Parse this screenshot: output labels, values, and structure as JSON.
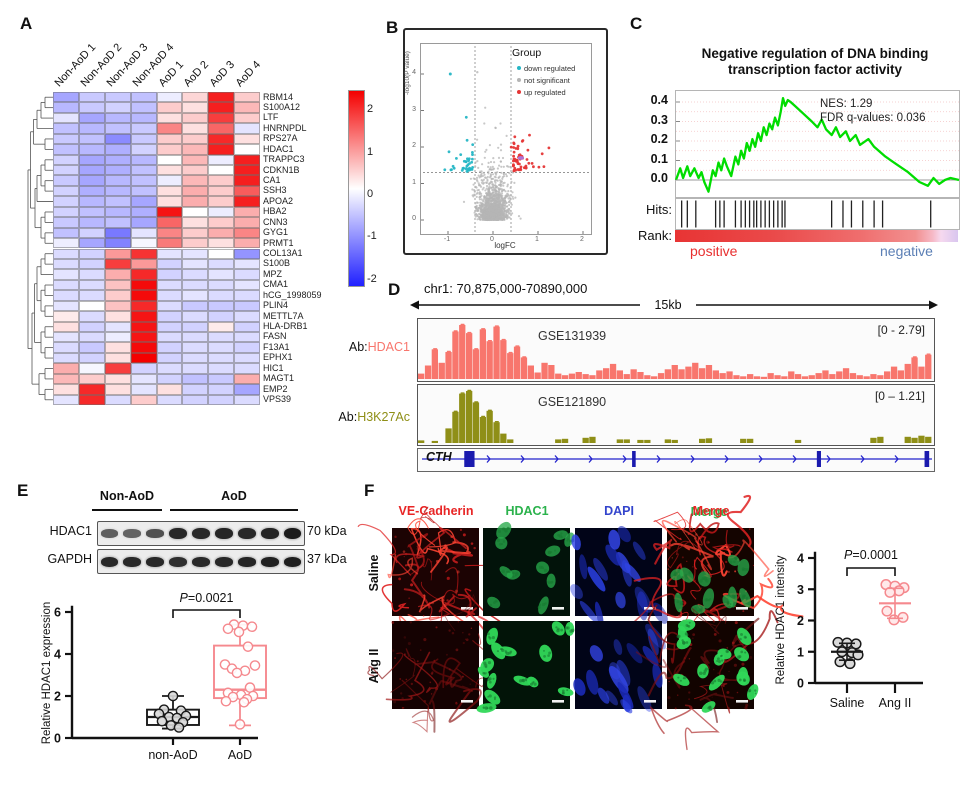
{
  "panelA": {
    "label": "A",
    "colorbar_ticks": [
      "2",
      "1",
      "0",
      "-1",
      "-2"
    ]
  },
  "panelB": {
    "label": "B",
    "legend_title": "Group",
    "legend": [
      {
        "label": "down regulated",
        "color": "#25b6c5"
      },
      {
        "label": "not significant",
        "color": "#b5b5b5"
      },
      {
        "label": "up regulated",
        "color": "#e53535"
      }
    ],
    "xlabel": "logFC",
    "ylabel": "-log10(P value)"
  },
  "panelC": {
    "label": "C",
    "title1": "Negative regulation of DNA binding",
    "title2": "transcription factor activity",
    "nes": "NES: 1.29",
    "fdr": "FDR q-values: 0.036",
    "hits": "Hits:",
    "rank": "Rank:",
    "positive": "positive",
    "negative": "negative"
  },
  "panelD": {
    "label": "D",
    "region": "chr1: 70,875,000-70890,000",
    "span": "15kb",
    "ab_prefix": "Ab:",
    "track1_ab": "HDAC1",
    "track1_gse": "GSE131939",
    "track1_range": "[0 - 2.79]",
    "track2_ab": "H3K27Ac",
    "track2_gse": "GSE121890",
    "track2_range": "[0 – 1.21]",
    "gene": "CTH"
  },
  "panelE": {
    "label": "E",
    "group1": "Non-AoD",
    "group2": "AoD",
    "protein1": "HDAC1",
    "kda1": "70 kDa",
    "protein2": "GAPDH",
    "kda2": "37 kDa",
    "p_italic": "P",
    "p_text": "=0.0021",
    "ylabel": "Relative HDAC1 expression",
    "x1": "non-AoD",
    "x2": "AoD"
  },
  "panelF": {
    "label": "F",
    "headers": [
      {
        "label": "VE-Cadherin",
        "color": "#e82525"
      },
      {
        "label": "HDAC1",
        "color": "#2bb24c"
      },
      {
        "label": "DAPI",
        "color": "#3344cc"
      },
      {
        "label": "Merge",
        "color": "#e82525",
        "shadow": "#2bb24c"
      }
    ],
    "rows": [
      "Saline",
      "Ang II"
    ],
    "p_italic": "P",
    "p_text": "=0.0001",
    "ylabel": "Relative HDAC1 intensity",
    "x1": "Saline",
    "x2": "Ang II"
  },
  "chart_data": [
    {
      "id": "A",
      "type": "heatmap",
      "categories": [
        "Non-AoD 1",
        "Non-AoD 2",
        "Non-AoD 3",
        "Non-AoD 4",
        "AoD 1",
        "AoD 2",
        "AoD 3",
        "AoD 4"
      ],
      "rows": [
        "RBM14",
        "S100A12",
        "LTF",
        "HNRNPDL",
        "RPS27A",
        "HDAC1",
        "TRAPPC3",
        "CDKN1B",
        "CA1",
        "SSH3",
        "APOA2",
        "HBA2",
        "CNN3",
        "GYG1",
        "PRMT1",
        "COL13A1",
        "S100B",
        "MPZ",
        "CMA1",
        "hCG_1998059",
        "PLIN4",
        "METTL7A",
        "HLA-DRB1",
        "FASN",
        "F13A1",
        "EPHX1",
        "HIC1",
        "MAGT1",
        "EMP2",
        "VPS39"
      ],
      "values": [
        [
          -1.0,
          -0.6,
          -0.6,
          -0.7,
          -0.2,
          0.4,
          2.2,
          0.5
        ],
        [
          -0.8,
          -0.6,
          -0.5,
          -0.7,
          0.5,
          0.3,
          2.2,
          0.7
        ],
        [
          -0.3,
          -1.0,
          -0.8,
          -0.8,
          0.3,
          0.5,
          1.9,
          0.5
        ],
        [
          -0.7,
          -0.8,
          -0.7,
          -0.6,
          1.2,
          0.3,
          1.5,
          -0.3
        ],
        [
          -0.6,
          -0.7,
          -1.3,
          -0.6,
          0.5,
          0.5,
          2.1,
          0.3
        ],
        [
          -0.7,
          -0.8,
          -0.9,
          -0.5,
          0.5,
          0.7,
          2.2,
          0.0
        ],
        [
          -0.5,
          -1.0,
          -0.9,
          -0.8,
          0.0,
          0.7,
          -0.2,
          2.2
        ],
        [
          -0.5,
          -1.0,
          -0.9,
          -0.7,
          0.3,
          0.5,
          0.0,
          2.2
        ],
        [
          -0.6,
          -1.0,
          -0.8,
          -0.7,
          -0.2,
          0.7,
          0.5,
          2.2
        ],
        [
          -0.5,
          -0.9,
          -0.8,
          -0.7,
          0.3,
          0.8,
          0.5,
          1.6
        ],
        [
          -0.5,
          -0.8,
          -0.7,
          -1.0,
          0.3,
          0.8,
          0.5,
          2.2
        ],
        [
          -0.5,
          -0.7,
          -0.8,
          -0.9,
          2.3,
          0.0,
          -0.2,
          0.8
        ],
        [
          -0.6,
          -0.8,
          -0.7,
          -1.0,
          1.5,
          0.3,
          0.5,
          0.8
        ],
        [
          -0.7,
          -0.5,
          -1.5,
          -0.3,
          1.2,
          0.5,
          0.8,
          1.2
        ],
        [
          -0.2,
          -1.0,
          -1.4,
          -0.1,
          1.3,
          0.5,
          0.3,
          0.8
        ],
        [
          -0.4,
          -0.5,
          1.0,
          2.0,
          -0.3,
          -0.3,
          0.0,
          -1.2
        ],
        [
          -0.4,
          -0.5,
          1.9,
          1.0,
          -0.5,
          -0.3,
          -0.4,
          -0.3
        ],
        [
          -0.3,
          -0.4,
          0.8,
          2.1,
          -0.5,
          -0.4,
          -0.3,
          -0.4
        ],
        [
          -0.4,
          -0.4,
          0.6,
          2.4,
          -0.4,
          -0.4,
          -0.4,
          -0.3
        ],
        [
          -0.4,
          -0.4,
          0.5,
          2.4,
          -0.4,
          -0.3,
          -0.4,
          -0.4
        ],
        [
          -0.3,
          0.0,
          0.6,
          2.1,
          -0.4,
          -0.6,
          -0.6,
          -0.6
        ],
        [
          0.2,
          -0.4,
          0.3,
          2.3,
          -0.5,
          -0.4,
          -0.5,
          -0.4
        ],
        [
          0.3,
          -0.5,
          -0.3,
          2.3,
          -0.5,
          -0.5,
          0.2,
          -0.5
        ],
        [
          -0.3,
          -0.4,
          -0.2,
          2.3,
          -0.4,
          -0.4,
          -0.4,
          -0.4
        ],
        [
          -0.4,
          -0.6,
          0.3,
          2.4,
          -0.5,
          -0.4,
          -0.4,
          -0.5
        ],
        [
          -0.4,
          -0.5,
          0.3,
          2.5,
          -0.5,
          -0.4,
          -0.4,
          -0.4
        ],
        [
          0.8,
          -0.1,
          1.9,
          -0.5,
          -0.4,
          -0.4,
          -0.4,
          -0.4
        ],
        [
          0.7,
          0.5,
          0.3,
          -0.3,
          -0.5,
          -0.7,
          -0.6,
          0.8
        ],
        [
          0.3,
          2.1,
          0.3,
          -0.3,
          0.3,
          -0.5,
          -0.5,
          -1.0
        ],
        [
          -0.3,
          2.1,
          -0.4,
          0.5,
          -0.4,
          -0.5,
          -0.5,
          -0.4
        ]
      ],
      "scale": {
        "ticks": [
          2,
          1,
          0,
          -1,
          -2
        ],
        "high": "#f40000",
        "mid": "#ffffff",
        "low": "#2020ff",
        "vmax": 2.5
      }
    },
    {
      "id": "B",
      "type": "scatter",
      "subtype": "volcano",
      "xlabel": "logFC",
      "ylabel": "-log10(P value)",
      "x_ticks": [
        -1,
        0,
        1,
        2
      ],
      "y_ticks": [
        0,
        1,
        2,
        3,
        4
      ],
      "xlim": [
        -1.65,
        2.35
      ],
      "ylim": [
        0,
        4.6
      ],
      "fc_threshold": 0.4,
      "p_threshold": 1.3,
      "highlight_point": {
        "x": 0.62,
        "y": 1.7,
        "color": "#a678e8"
      }
    },
    {
      "id": "C",
      "type": "line",
      "series": "enrichment score",
      "color": "#00dd00",
      "ylim": [
        -0.09,
        0.45
      ],
      "y_ticks": [
        0.4,
        0.3,
        0.2,
        0.1,
        0.0
      ],
      "nes": 1.29,
      "fdr_q": 0.036,
      "curve": [
        [
          0,
          0.0
        ],
        [
          1.5,
          0.06
        ],
        [
          2.5,
          0.01
        ],
        [
          4,
          0.07
        ],
        [
          5,
          0.02
        ],
        [
          6.5,
          0.06
        ],
        [
          8,
          0.01
        ],
        [
          9,
          0.04
        ],
        [
          10,
          -0.01
        ],
        [
          11.5,
          -0.06
        ],
        [
          13,
          0.05
        ],
        [
          14,
          0.02
        ],
        [
          15,
          0.09
        ],
        [
          16,
          0.05
        ],
        [
          17,
          0.11
        ],
        [
          18,
          0.07
        ],
        [
          19.5,
          0.02
        ],
        [
          21,
          0.12
        ],
        [
          22,
          0.08
        ],
        [
          23,
          0.15
        ],
        [
          24,
          0.11
        ],
        [
          25,
          0.19
        ],
        [
          26,
          0.15
        ],
        [
          27,
          0.21
        ],
        [
          28,
          0.17
        ],
        [
          29,
          0.24
        ],
        [
          30,
          0.2
        ],
        [
          31,
          0.27
        ],
        [
          32,
          0.23
        ],
        [
          33,
          0.29
        ],
        [
          34,
          0.26
        ],
        [
          35,
          0.32
        ],
        [
          36,
          0.28
        ],
        [
          37,
          0.35
        ],
        [
          37.8,
          0.42
        ],
        [
          38.6,
          0.38
        ],
        [
          39.5,
          0.41
        ],
        [
          40.5,
          0.4
        ],
        [
          42,
          0.38
        ],
        [
          45,
          0.34
        ],
        [
          48,
          0.3
        ],
        [
          50,
          0.27
        ],
        [
          51.5,
          0.31
        ],
        [
          53,
          0.26
        ],
        [
          55,
          0.23
        ],
        [
          56.5,
          0.27
        ],
        [
          58,
          0.22
        ],
        [
          60,
          0.25
        ],
        [
          61.5,
          0.2
        ],
        [
          63.5,
          0.23
        ],
        [
          65,
          0.18
        ],
        [
          68,
          0.21
        ],
        [
          70,
          0.17
        ],
        [
          74,
          0.12
        ],
        [
          78,
          0.08
        ],
        [
          82,
          0.04
        ],
        [
          86,
          -0.01
        ],
        [
          89,
          -0.03
        ],
        [
          91,
          0.01
        ],
        [
          93,
          -0.02
        ],
        [
          95,
          0.0
        ],
        [
          97,
          0.01
        ],
        [
          100,
          0.0
        ]
      ],
      "hit_positions_pct": [
        2,
        4,
        7,
        14,
        15.5,
        17,
        21,
        23,
        24.5,
        26,
        27.5,
        28.5,
        30,
        31.5,
        33,
        34.5,
        36,
        37.5,
        38.5,
        55,
        59,
        62,
        66,
        70,
        73,
        90
      ]
    },
    {
      "id": "D",
      "type": "area",
      "tracks": [
        {
          "name": "HDAC1",
          "color": "#f8766d",
          "profile": [
            0.1,
            0.25,
            0.55,
            0.3,
            0.5,
            0.88,
            1.0,
            0.85,
            0.55,
            0.92,
            0.7,
            0.97,
            0.72,
            0.48,
            0.6,
            0.4,
            0.25,
            0.12,
            0.3,
            0.26,
            0.1,
            0.07,
            0.1,
            0.13,
            0.09,
            0.07,
            0.16,
            0.2,
            0.28,
            0.16,
            0.09,
            0.18,
            0.13,
            0.07,
            0.05,
            0.11,
            0.18,
            0.26,
            0.18,
            0.23,
            0.3,
            0.2,
            0.26,
            0.16,
            0.11,
            0.14,
            0.07,
            0.05,
            0.09,
            0.05,
            0.04,
            0.11,
            0.07,
            0.05,
            0.14,
            0.09,
            0.05,
            0.07,
            0.11,
            0.16,
            0.09,
            0.14,
            0.2,
            0.11,
            0.07,
            0.05,
            0.09,
            0.07,
            0.14,
            0.23,
            0.16,
            0.28,
            0.4,
            0.23,
            0.45
          ]
        },
        {
          "name": "H3K27Ac",
          "color": "#8f8f17",
          "profile": [
            0.05,
            0,
            0.04,
            0,
            0.28,
            0.6,
            0.95,
            1.0,
            0.78,
            0.5,
            0.62,
            0.4,
            0.18,
            0.07,
            0,
            0,
            0,
            0,
            0,
            0,
            0.07,
            0.08,
            0,
            0,
            0.1,
            0.12,
            0,
            0,
            0,
            0.07,
            0.07,
            0,
            0.06,
            0.06,
            0,
            0,
            0.07,
            0.06,
            0,
            0,
            0,
            0.08,
            0.09,
            0,
            0,
            0,
            0,
            0.08,
            0.08,
            0,
            0,
            0,
            0,
            0,
            0,
            0.06,
            0,
            0,
            0,
            0,
            0,
            0,
            0,
            0,
            0,
            0,
            0.1,
            0.12,
            0,
            0,
            0,
            0.12,
            0.1,
            0.14,
            0.12
          ]
        }
      ],
      "gene_exons_pct": [
        [
          10,
          2.0
        ],
        [
          42,
          0.7
        ],
        [
          78,
          0.8
        ],
        [
          99,
          0.9
        ]
      ]
    },
    {
      "id": "E-blot",
      "type": "bar",
      "lanes": 9,
      "group_sizes": [
        3,
        6
      ],
      "rows": [
        {
          "name": "HDAC1",
          "intensities": [
            0.5,
            0.45,
            0.6,
            0.9,
            0.88,
            0.92,
            0.9,
            0.93,
            1.0
          ]
        },
        {
          "name": "GAPDH",
          "intensities": [
            0.9,
            0.88,
            0.9,
            0.85,
            0.88,
            0.9,
            0.92,
            0.95,
            0.97
          ]
        }
      ]
    },
    {
      "id": "E",
      "type": "box",
      "ylabel": "Relative HDAC1 expression",
      "y_ticks": [
        0,
        2,
        4,
        6
      ],
      "ylim": [
        0,
        6
      ],
      "p_value": "0.0021",
      "groups": [
        {
          "label": "non-AoD",
          "color": "#1a1a1a",
          "fill": "#d9d9d9",
          "box": [
            0.62,
            1.0,
            1.35
          ],
          "whiskers": [
            0.45,
            2.0
          ],
          "points": [
            2.0,
            1.35,
            1.3,
            1.15,
            1.05,
            1.0,
            0.95,
            0.8,
            0.75,
            0.6,
            0.5
          ]
        },
        {
          "label": "AoD",
          "color": "#f5898e",
          "fill": "#ffffff",
          "box": [
            1.9,
            2.3,
            4.4
          ],
          "whiskers": [
            0.6,
            5.4
          ],
          "points": [
            5.4,
            5.35,
            5.3,
            5.2,
            5.05,
            4.35,
            3.5,
            3.45,
            3.3,
            3.2,
            3.1,
            2.4,
            2.15,
            2.05,
            2.0,
            1.95,
            1.85,
            1.75,
            1.7,
            0.65
          ]
        }
      ]
    },
    {
      "id": "F",
      "type": "scatter",
      "ylabel": "Relative HDAC1 intensity",
      "y_ticks": [
        0,
        1,
        2,
        3,
        4
      ],
      "ylim": [
        0,
        4
      ],
      "p_value": "0.0001",
      "groups": [
        {
          "label": "Saline",
          "color": "#1a1a1a",
          "fill": "#d9d9d9",
          "mean": 1.0,
          "sd": 0.27,
          "points": [
            1.3,
            1.28,
            1.25,
            1.0,
            0.97,
            0.9,
            0.68,
            0.62
          ]
        },
        {
          "label": "Ang II",
          "color": "#f5898e",
          "fill": "#ffe9ea",
          "mean": 2.55,
          "sd": 0.48,
          "points": [
            3.15,
            3.1,
            3.05,
            2.95,
            2.9,
            2.3,
            2.1,
            2.02
          ]
        }
      ]
    }
  ]
}
